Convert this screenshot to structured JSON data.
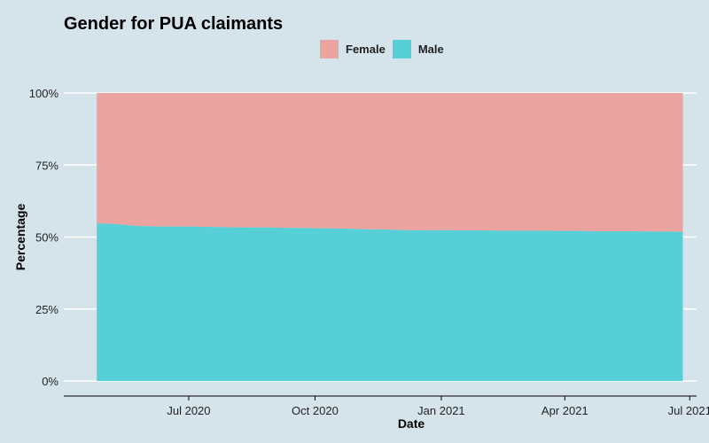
{
  "chart_data": {
    "type": "area",
    "stacked": true,
    "percent": true,
    "title": "Gender for PUA claimants",
    "xlabel": "Date",
    "ylabel": "Percentage",
    "ylim": [
      0,
      100
    ],
    "y_ticks": [
      0,
      25,
      50,
      75,
      100
    ],
    "y_tick_labels": [
      "0%",
      "25%",
      "50%",
      "75%",
      "100%"
    ],
    "x_ticks": [
      "2020-07-01",
      "2020-10-01",
      "2021-01-01",
      "2021-04-01",
      "2021-07-01"
    ],
    "x_tick_labels": [
      "Jul 2020",
      "Oct 2020",
      "Jan 2021",
      "Apr 2021",
      "Jul 2021"
    ],
    "xlim": [
      "2020-04-01",
      "2021-07-06"
    ],
    "grid": "horizontal",
    "legend_position": "top",
    "x": [
      "2020-04-25",
      "2020-05-09",
      "2020-05-23",
      "2020-06-06",
      "2020-06-20",
      "2020-07-04",
      "2020-07-18",
      "2020-08-01",
      "2020-08-15",
      "2020-08-29",
      "2020-09-12",
      "2020-09-26",
      "2020-10-10",
      "2020-10-24",
      "2020-11-07",
      "2020-11-21",
      "2020-12-05",
      "2020-12-19",
      "2021-01-02",
      "2021-01-16",
      "2021-01-30",
      "2021-02-13",
      "2021-02-27",
      "2021-03-13",
      "2021-03-27",
      "2021-04-10",
      "2021-04-24",
      "2021-05-08",
      "2021-05-22",
      "2021-06-05",
      "2021-06-19",
      "2021-06-26"
    ],
    "series": [
      {
        "name": "Male",
        "color": "#56d0d6",
        "values": [
          54.8,
          54.5,
          53.9,
          53.7,
          53.6,
          53.6,
          53.5,
          53.4,
          53.3,
          53.3,
          53.2,
          53.1,
          53.0,
          52.9,
          52.7,
          52.6,
          52.4,
          52.3,
          52.4,
          52.3,
          52.3,
          52.2,
          52.2,
          52.2,
          52.1,
          52.1,
          52.0,
          52.0,
          52.0,
          51.9,
          51.9,
          51.7
        ]
      },
      {
        "name": "Female",
        "color": "#eba39f",
        "values": [
          45.2,
          45.5,
          46.1,
          46.3,
          46.4,
          46.4,
          46.5,
          46.6,
          46.7,
          46.7,
          46.8,
          46.9,
          47.0,
          47.1,
          47.3,
          47.4,
          47.6,
          47.7,
          47.6,
          47.7,
          47.7,
          47.8,
          47.8,
          47.8,
          47.9,
          47.9,
          48.0,
          48.0,
          48.0,
          48.1,
          48.1,
          48.3
        ]
      }
    ]
  }
}
